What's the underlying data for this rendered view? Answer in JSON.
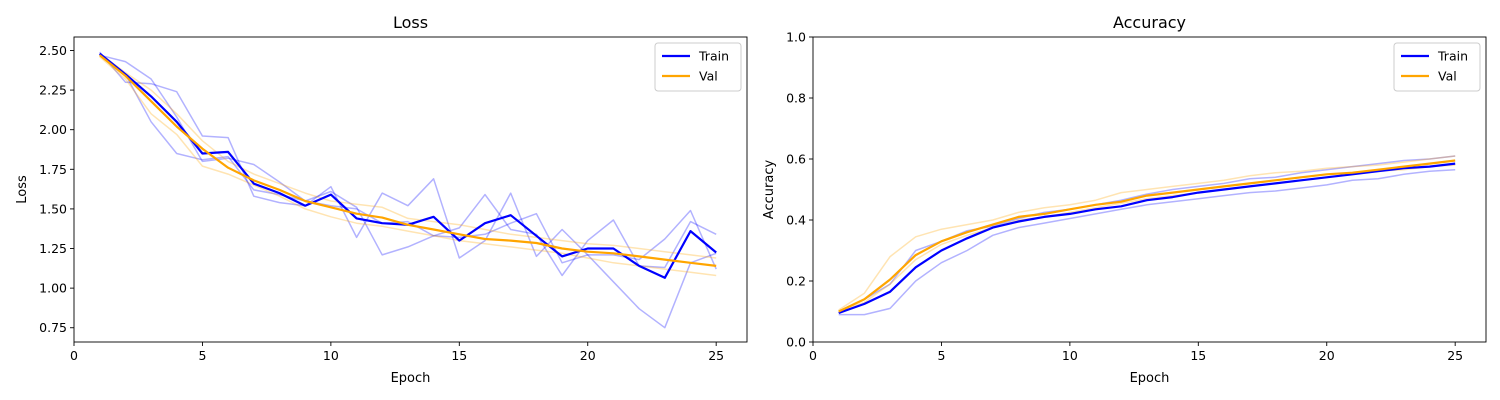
{
  "chart_data": [
    {
      "type": "line",
      "title": "Loss",
      "xlabel": "Epoch",
      "ylabel": "Loss",
      "xlim": [
        0,
        26.2
      ],
      "ylim": [
        0.66,
        2.585
      ],
      "xticks": [
        0,
        5,
        10,
        15,
        20,
        25
      ],
      "yticks": [
        0.75,
        1.0,
        1.25,
        1.5,
        1.75,
        2.0,
        2.25,
        2.5
      ],
      "ytick_format": 2,
      "legend": "top-right",
      "grid": false,
      "x": [
        1,
        2,
        3,
        4,
        5,
        6,
        7,
        8,
        9,
        10,
        11,
        12,
        13,
        14,
        15,
        16,
        17,
        18,
        19,
        20,
        21,
        22,
        23,
        24,
        25
      ],
      "series": [
        {
          "name": "Train",
          "color": "#0000ff",
          "width": 2.2,
          "opacity": 1,
          "values": [
            2.48,
            2.35,
            2.21,
            2.05,
            1.85,
            1.86,
            1.66,
            1.6,
            1.52,
            1.59,
            1.44,
            1.41,
            1.4,
            1.45,
            1.3,
            1.41,
            1.46,
            1.33,
            1.2,
            1.25,
            1.25,
            1.14,
            1.065,
            1.36,
            1.225
          ]
        },
        {
          "name": "Val",
          "color": "#ffa500",
          "width": 2.2,
          "opacity": 1,
          "values": [
            2.47,
            2.34,
            2.18,
            2.02,
            1.88,
            1.76,
            1.68,
            1.62,
            1.55,
            1.51,
            1.47,
            1.445,
            1.4,
            1.37,
            1.34,
            1.31,
            1.3,
            1.285,
            1.25,
            1.23,
            1.22,
            1.2,
            1.18,
            1.16,
            1.14
          ]
        }
      ],
      "faint_series": [
        {
          "color": "#0000ff",
          "opacity": 0.3,
          "values": [
            2.49,
            2.3,
            2.29,
            2.24,
            1.96,
            1.95,
            1.58,
            1.54,
            1.52,
            1.64,
            1.32,
            1.6,
            1.52,
            1.69,
            1.19,
            1.3,
            1.6,
            1.2,
            1.37,
            1.21,
            1.21,
            1.18,
            1.31,
            1.49,
            1.12
          ]
        },
        {
          "color": "#0000ff",
          "opacity": 0.3,
          "values": [
            2.47,
            2.43,
            2.32,
            2.08,
            1.8,
            1.82,
            1.78,
            1.67,
            1.55,
            1.61,
            1.51,
            1.21,
            1.26,
            1.33,
            1.38,
            1.59,
            1.37,
            1.34,
            1.08,
            1.3,
            1.43,
            1.14,
            1.13,
            1.42,
            1.34
          ]
        },
        {
          "color": "#0000ff",
          "opacity": 0.3,
          "values": [
            2.47,
            2.35,
            2.05,
            1.85,
            1.81,
            1.83,
            1.62,
            1.59,
            1.55,
            1.52,
            1.5,
            1.41,
            1.42,
            1.33,
            1.32,
            1.34,
            1.41,
            1.47,
            1.16,
            1.21,
            1.04,
            0.87,
            0.75,
            1.16,
            1.22
          ]
        },
        {
          "color": "#ffa500",
          "opacity": 0.3,
          "values": [
            2.46,
            2.32,
            2.1,
            1.97,
            1.77,
            1.72,
            1.65,
            1.58,
            1.5,
            1.45,
            1.41,
            1.39,
            1.36,
            1.33,
            1.3,
            1.28,
            1.26,
            1.24,
            1.22,
            1.19,
            1.16,
            1.14,
            1.12,
            1.1,
            1.08
          ]
        },
        {
          "color": "#ffa500",
          "opacity": 0.3,
          "values": [
            2.48,
            2.36,
            2.25,
            2.1,
            1.93,
            1.8,
            1.72,
            1.66,
            1.6,
            1.55,
            1.53,
            1.51,
            1.44,
            1.42,
            1.4,
            1.37,
            1.34,
            1.32,
            1.3,
            1.28,
            1.27,
            1.25,
            1.23,
            1.21,
            1.19
          ]
        }
      ]
    },
    {
      "type": "line",
      "title": "Accuracy",
      "xlabel": "Epoch",
      "ylabel": "Accuracy",
      "xlim": [
        0,
        26.2
      ],
      "ylim": [
        0.0,
        1.0
      ],
      "xticks": [
        0,
        5,
        10,
        15,
        20,
        25
      ],
      "yticks": [
        0.0,
        0.2,
        0.4,
        0.6,
        0.8,
        1.0
      ],
      "ytick_format": 1,
      "legend": "top-right",
      "grid": false,
      "x": [
        1,
        2,
        3,
        4,
        5,
        6,
        7,
        8,
        9,
        10,
        11,
        12,
        13,
        14,
        15,
        16,
        17,
        18,
        19,
        20,
        21,
        22,
        23,
        24,
        25
      ],
      "series": [
        {
          "name": "Train",
          "color": "#0000ff",
          "width": 2.2,
          "opacity": 1,
          "values": [
            0.095,
            0.125,
            0.165,
            0.245,
            0.3,
            0.34,
            0.375,
            0.395,
            0.41,
            0.42,
            0.435,
            0.445,
            0.465,
            0.475,
            0.49,
            0.5,
            0.51,
            0.52,
            0.53,
            0.54,
            0.55,
            0.56,
            0.57,
            0.575,
            0.585
          ]
        },
        {
          "name": "Val",
          "color": "#ffa500",
          "width": 2.2,
          "opacity": 1,
          "values": [
            0.1,
            0.14,
            0.205,
            0.285,
            0.33,
            0.36,
            0.385,
            0.41,
            0.42,
            0.435,
            0.45,
            0.46,
            0.48,
            0.49,
            0.5,
            0.51,
            0.52,
            0.53,
            0.54,
            0.55,
            0.555,
            0.565,
            0.575,
            0.585,
            0.595
          ]
        }
      ],
      "faint_series": [
        {
          "color": "#0000ff",
          "opacity": 0.3,
          "values": [
            0.09,
            0.09,
            0.11,
            0.2,
            0.26,
            0.3,
            0.35,
            0.375,
            0.39,
            0.405,
            0.42,
            0.435,
            0.45,
            0.46,
            0.47,
            0.48,
            0.49,
            0.495,
            0.505,
            0.515,
            0.53,
            0.535,
            0.55,
            0.56,
            0.565
          ]
        },
        {
          "color": "#0000ff",
          "opacity": 0.3,
          "values": [
            0.1,
            0.14,
            0.19,
            0.3,
            0.33,
            0.365,
            0.38,
            0.405,
            0.425,
            0.435,
            0.45,
            0.465,
            0.485,
            0.5,
            0.51,
            0.52,
            0.535,
            0.54,
            0.555,
            0.565,
            0.575,
            0.585,
            0.595,
            0.6,
            0.61
          ]
        },
        {
          "color": "#ffa500",
          "opacity": 0.3,
          "values": [
            0.105,
            0.16,
            0.28,
            0.345,
            0.37,
            0.385,
            0.4,
            0.425,
            0.44,
            0.45,
            0.465,
            0.49,
            0.5,
            0.51,
            0.52,
            0.53,
            0.545,
            0.555,
            0.56,
            0.57,
            0.575,
            0.58,
            0.59,
            0.6,
            0.61
          ]
        },
        {
          "color": "#ffa500",
          "opacity": 0.3,
          "values": [
            0.1,
            0.13,
            0.19,
            0.27,
            0.32,
            0.35,
            0.375,
            0.4,
            0.41,
            0.425,
            0.44,
            0.455,
            0.47,
            0.48,
            0.49,
            0.5,
            0.51,
            0.52,
            0.53,
            0.54,
            0.55,
            0.56,
            0.565,
            0.575,
            0.58
          ]
        }
      ]
    }
  ]
}
